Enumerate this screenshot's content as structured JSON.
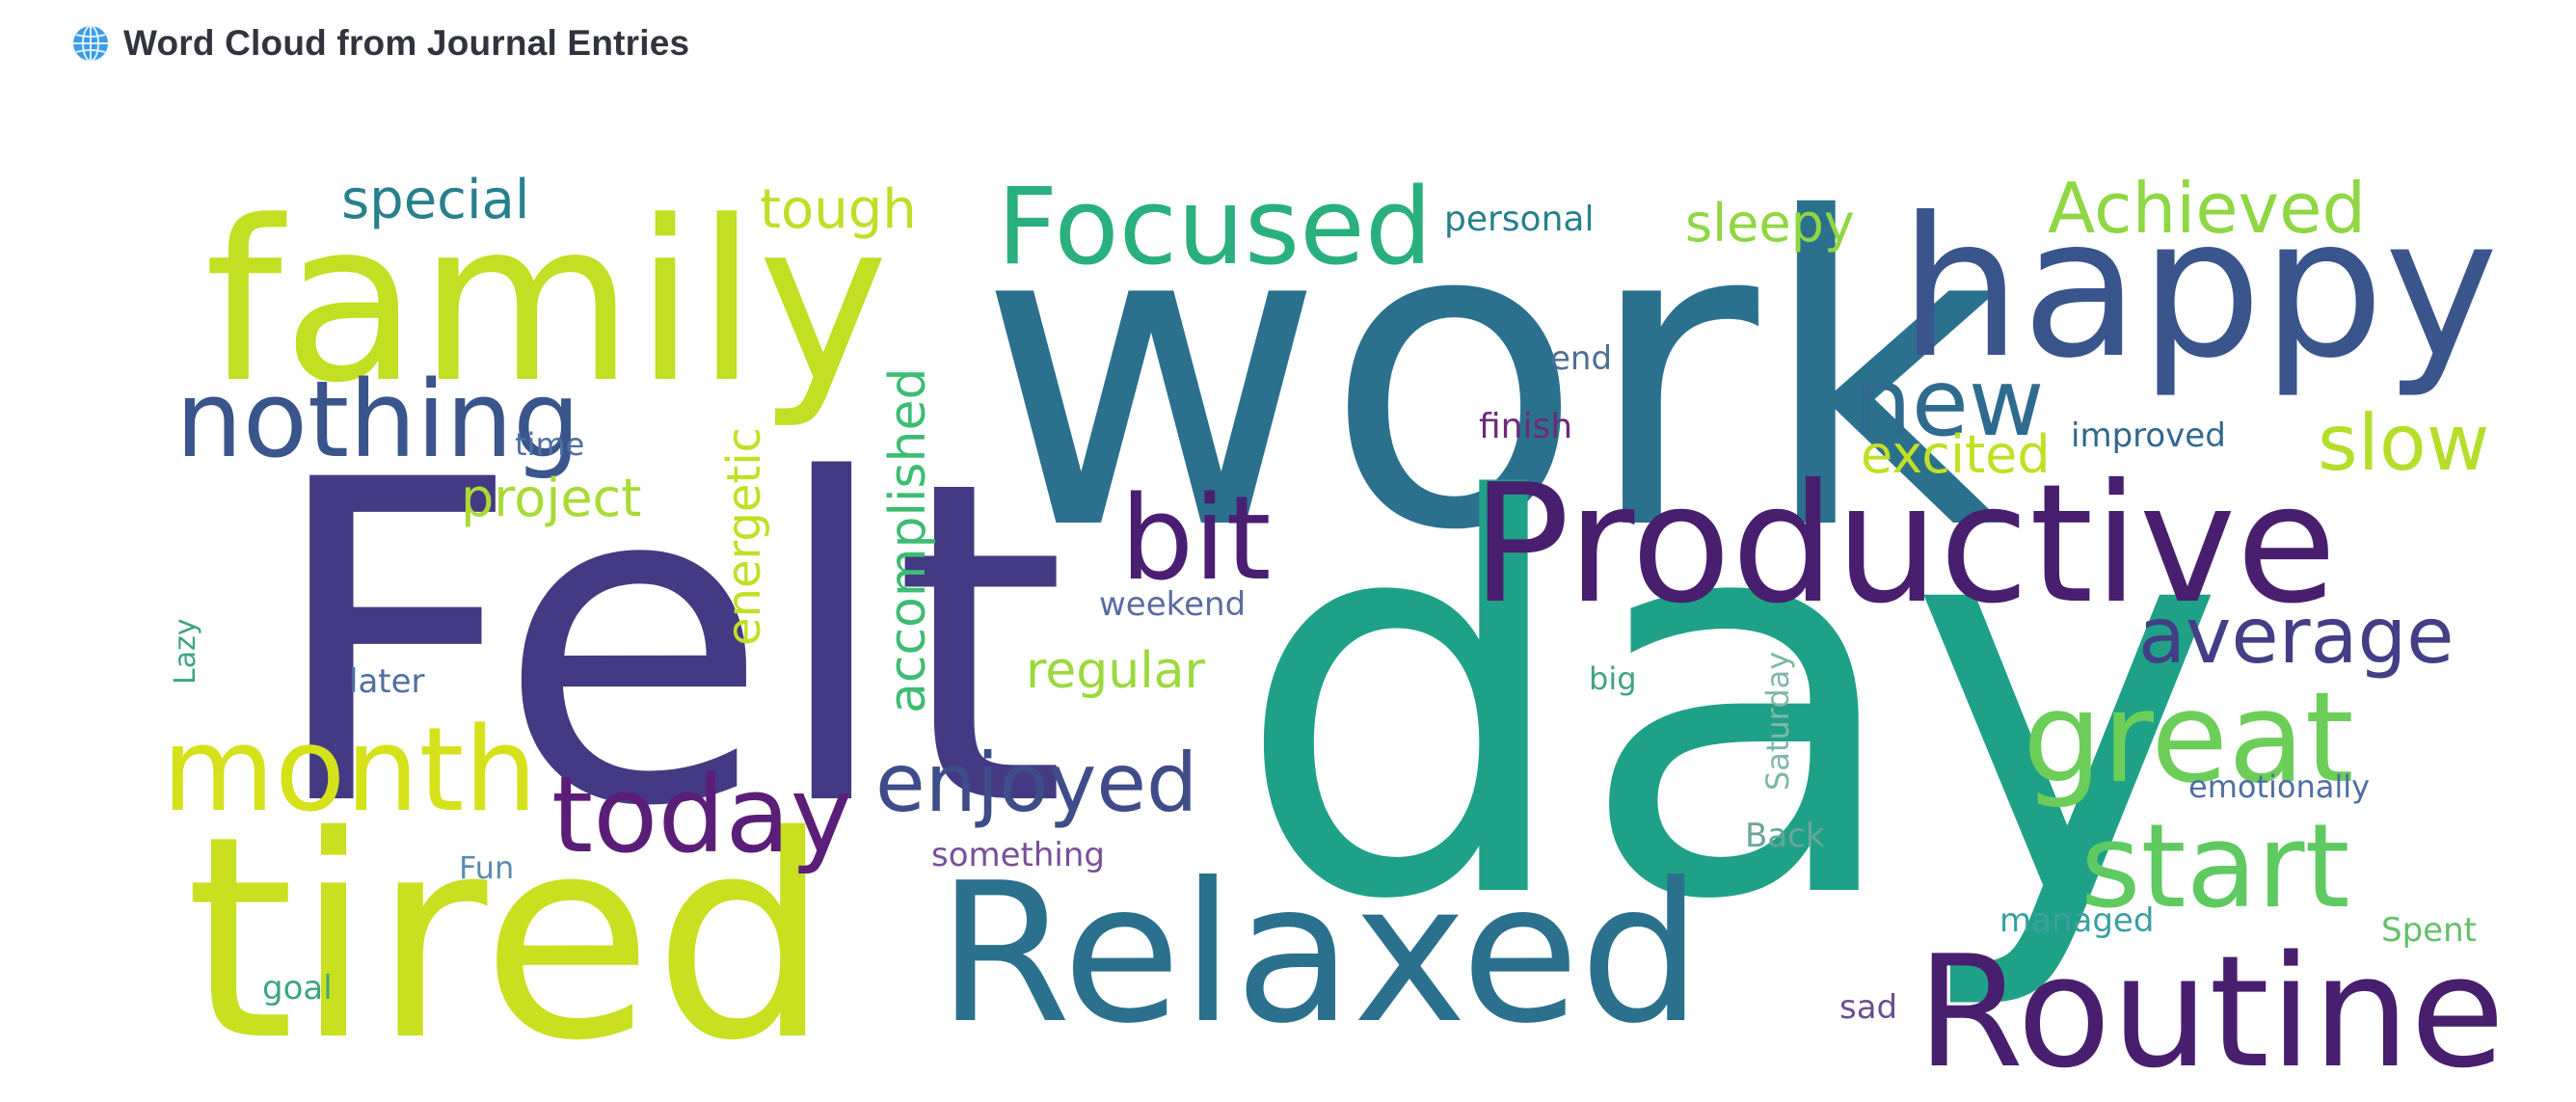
{
  "header": {
    "icon": "globe-icon",
    "title": "Word Cloud from Journal Entries"
  },
  "palette": {
    "dark_purple": "#481f6e",
    "indigo": "#443a83",
    "blue": "#3a548c",
    "teal_blue": "#2b718e",
    "teal": "#23898e",
    "green_teal": "#1fa187",
    "green": "#43bf71",
    "light_green": "#7ad151",
    "yellow_green": "#b5de2b",
    "yellow": "#d5e21a"
  },
  "words": [
    {
      "text": "work",
      "color": "#2b718e"
    },
    {
      "text": "Felt",
      "color": "#443a83"
    },
    {
      "text": "day",
      "color": "#1fa187"
    },
    {
      "text": "family",
      "color": "#c2df23"
    },
    {
      "text": "tired",
      "color": "#c8e020"
    },
    {
      "text": "happy",
      "color": "#3a548c"
    },
    {
      "text": "Productive",
      "color": "#481f6e"
    },
    {
      "text": "Relaxed",
      "color": "#2b718e"
    },
    {
      "text": "Routine",
      "color": "#481f6e"
    },
    {
      "text": "Focused",
      "color": "#2ab07f"
    },
    {
      "text": "nothing",
      "color": "#3a548c"
    },
    {
      "text": "month",
      "color": "#d5e21a"
    },
    {
      "text": "today",
      "color": "#5b1e78"
    },
    {
      "text": "bit",
      "color": "#4a1e72"
    },
    {
      "text": "great",
      "color": "#6cce59"
    },
    {
      "text": "start",
      "color": "#5fca61"
    },
    {
      "text": "average",
      "color": "#433e85"
    },
    {
      "text": "enjoyed",
      "color": "#3e4c8a"
    },
    {
      "text": "new",
      "color": "#2f6b8e"
    },
    {
      "text": "Achieved",
      "color": "#8fd744"
    },
    {
      "text": "slow",
      "color": "#b5de2b"
    },
    {
      "text": "special",
      "color": "#27808e"
    },
    {
      "text": "tough",
      "color": "#bddf26"
    },
    {
      "text": "personal",
      "color": "#27808e"
    },
    {
      "text": "sleepy",
      "color": "#8fd744"
    },
    {
      "text": "end",
      "color": "#4d6f94"
    },
    {
      "text": "finish",
      "color": "#6b2a7a"
    },
    {
      "text": "excited",
      "color": "#c2df23"
    },
    {
      "text": "improved",
      "color": "#31688e"
    },
    {
      "text": "project",
      "color": "#a8db34"
    },
    {
      "text": "time",
      "color": "#4f6fa0"
    },
    {
      "text": "energetic",
      "color": "#c2df23"
    },
    {
      "text": "accomplished",
      "color": "#3dbc74"
    },
    {
      "text": "regular",
      "color": "#9bd93c"
    },
    {
      "text": "weekend",
      "color": "#5a6ca0"
    },
    {
      "text": "later",
      "color": "#4f6fa0"
    },
    {
      "text": "Lazy",
      "color": "#3ea57e"
    },
    {
      "text": "big",
      "color": "#3ea57e"
    },
    {
      "text": "Saturday",
      "color": "#7fb8a8"
    },
    {
      "text": "emotionally",
      "color": "#4f6fa0"
    },
    {
      "text": "Back",
      "color": "#6aa59a"
    },
    {
      "text": "something",
      "color": "#7a4e9a"
    },
    {
      "text": "Fun",
      "color": "#5a8cb0"
    },
    {
      "text": "managed",
      "color": "#3aa0a0"
    },
    {
      "text": "Spent",
      "color": "#62c06a"
    },
    {
      "text": "goal",
      "color": "#3ea57e"
    },
    {
      "text": "sad",
      "color": "#6a4e90"
    }
  ]
}
